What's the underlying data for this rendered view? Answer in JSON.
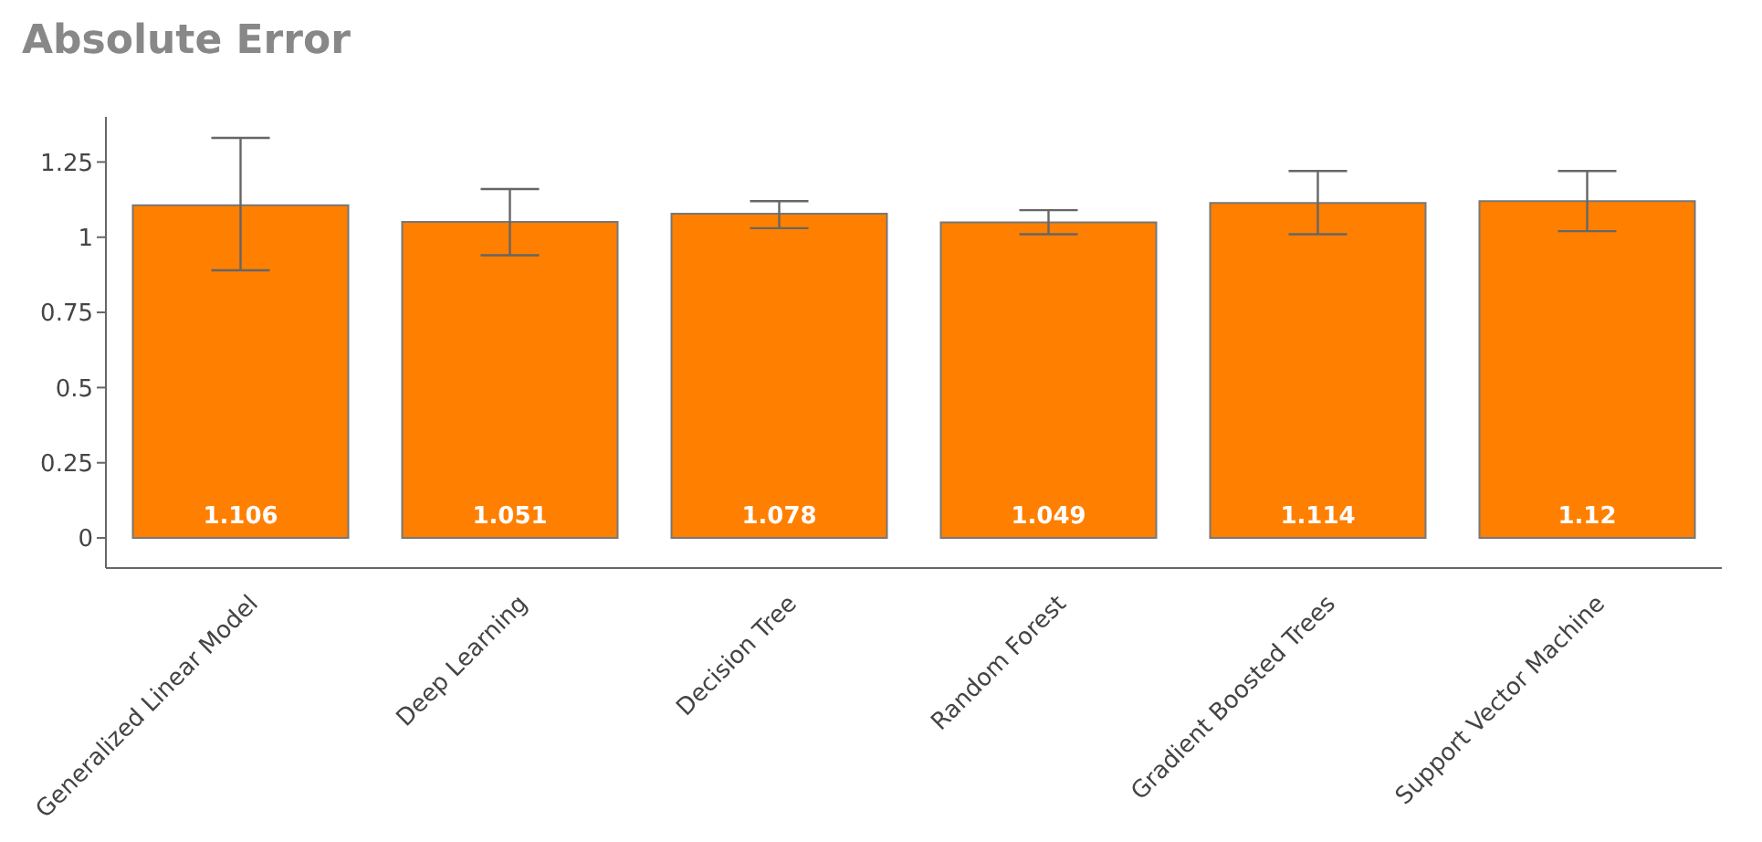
{
  "chart_data": {
    "type": "bar",
    "title": "Absolute Error",
    "categories": [
      "Generalized Linear Model",
      "Deep Learning",
      "Decision Tree",
      "Random Forest",
      "Gradient Boosted Trees",
      "Support Vector Machine"
    ],
    "values": [
      1.106,
      1.051,
      1.078,
      1.049,
      1.114,
      1.12
    ],
    "errors": [
      [
        0.89,
        1.33
      ],
      [
        0.94,
        1.16
      ],
      [
        1.03,
        1.12
      ],
      [
        1.01,
        1.09
      ],
      [
        1.01,
        1.22
      ],
      [
        1.02,
        1.22
      ]
    ],
    "color": "#ff7f00",
    "ylim": [
      -0.1,
      1.4
    ],
    "yticks": [
      0,
      0.25,
      0.5,
      0.75,
      1,
      1.25
    ],
    "data_labels": true,
    "grid": false,
    "legend": false
  }
}
